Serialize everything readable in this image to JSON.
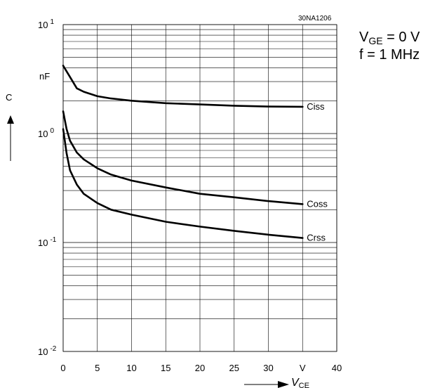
{
  "figure_id": "30NA1206",
  "conditions": {
    "line1": {
      "main": "V",
      "sub": "GE",
      "rest": " = 0 V"
    },
    "line2": "f = 1 MHz"
  },
  "chart_data": {
    "type": "line",
    "title": "",
    "y_axis": {
      "label": "C",
      "unit": "nF",
      "scale": "log",
      "range": [
        0.01,
        10
      ],
      "major_ticks": [
        {
          "base": "10",
          "exp": "-2",
          "value": 0.01
        },
        {
          "base": "10",
          "exp": "-1",
          "value": 0.1
        },
        {
          "base": "10",
          "exp": "0",
          "value": 1
        },
        {
          "base": "10",
          "exp": "1",
          "value": 10
        }
      ]
    },
    "x_axis": {
      "label": {
        "main": "V",
        "sub": "CE"
      },
      "unit": "V",
      "scale": "linear",
      "range": [
        0,
        40
      ],
      "ticks": [
        "0",
        "5",
        "10",
        "15",
        "20",
        "25",
        "30",
        "V",
        "40"
      ],
      "tick_values": [
        0,
        5,
        10,
        15,
        20,
        25,
        30,
        35,
        40
      ]
    },
    "grid": true,
    "series": [
      {
        "name": "Ciss",
        "x": [
          0,
          1,
          2,
          3,
          5,
          7,
          10,
          15,
          20,
          25,
          30,
          35
        ],
        "y": [
          4.2,
          3.3,
          2.6,
          2.42,
          2.2,
          2.1,
          2.0,
          1.9,
          1.85,
          1.8,
          1.77,
          1.76
        ]
      },
      {
        "name": "Coss",
        "x": [
          0,
          0.5,
          1,
          2,
          3,
          5,
          7,
          10,
          15,
          20,
          25,
          30,
          35
        ],
        "y": [
          1.6,
          1.1,
          0.86,
          0.67,
          0.58,
          0.48,
          0.42,
          0.37,
          0.32,
          0.28,
          0.26,
          0.24,
          0.225
        ]
      },
      {
        "name": "Crss",
        "x": [
          0,
          0.5,
          1,
          2,
          3,
          5,
          7,
          10,
          15,
          20,
          25,
          30,
          35
        ],
        "y": [
          1.1,
          0.66,
          0.46,
          0.34,
          0.28,
          0.23,
          0.2,
          0.18,
          0.155,
          0.14,
          0.128,
          0.118,
          0.11
        ]
      }
    ]
  }
}
